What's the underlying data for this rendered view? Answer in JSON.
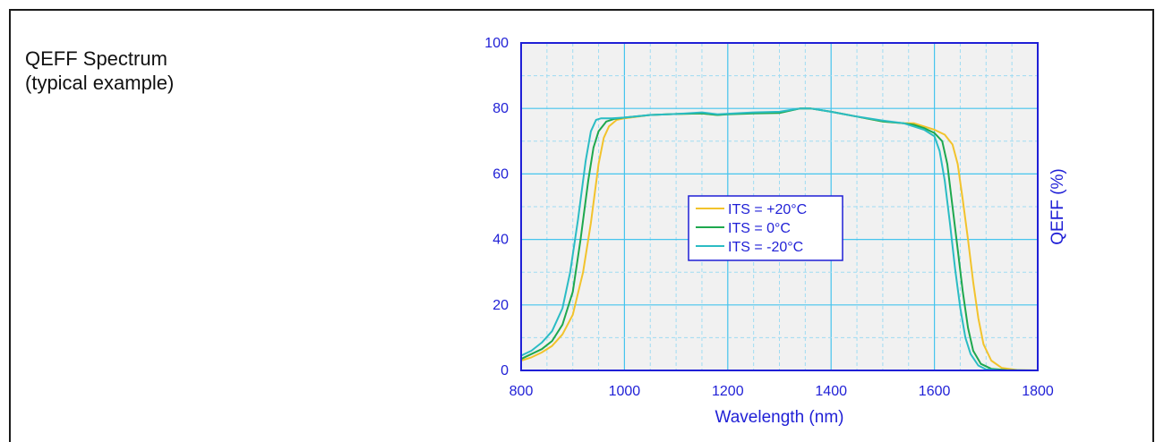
{
  "caption": {
    "line1": "QEFF Spectrum",
    "line2": "(typical example)"
  },
  "colors": {
    "axis": "#1f1fd6",
    "grid_major": "#45c4ee",
    "grid_minor": "#9fdcf2",
    "plot_bg": "#f1f1f1",
    "frame": "#1a1a1a"
  },
  "chart_data": {
    "type": "line",
    "xlabel": "Wavelength (nm)",
    "ylabel": "QEFF (%)",
    "xlim": [
      800,
      1800
    ],
    "ylim": [
      0,
      100
    ],
    "xticks": [
      800,
      1000,
      1200,
      1400,
      1600,
      1800
    ],
    "yticks": [
      0,
      20,
      40,
      60,
      80,
      100
    ],
    "grid": true,
    "legend_position": "center",
    "series": [
      {
        "name": "ITS = +20°C",
        "color": "#f2c32c",
        "points": [
          [
            800,
            3
          ],
          [
            820,
            4
          ],
          [
            840,
            5.5
          ],
          [
            860,
            7.5
          ],
          [
            880,
            11
          ],
          [
            900,
            17
          ],
          [
            920,
            30
          ],
          [
            935,
            45
          ],
          [
            950,
            63
          ],
          [
            960,
            71
          ],
          [
            970,
            74.5
          ],
          [
            985,
            76.5
          ],
          [
            1000,
            77
          ],
          [
            1050,
            78
          ],
          [
            1100,
            78.3
          ],
          [
            1150,
            78.5
          ],
          [
            1180,
            78
          ],
          [
            1200,
            78.3
          ],
          [
            1250,
            78.6
          ],
          [
            1300,
            78.8
          ],
          [
            1340,
            80
          ],
          [
            1360,
            80
          ],
          [
            1400,
            79
          ],
          [
            1450,
            77.5
          ],
          [
            1500,
            76
          ],
          [
            1540,
            75.5
          ],
          [
            1560,
            75.5
          ],
          [
            1580,
            74.5
          ],
          [
            1600,
            73.5
          ],
          [
            1620,
            72
          ],
          [
            1635,
            69
          ],
          [
            1645,
            63
          ],
          [
            1655,
            52
          ],
          [
            1665,
            40
          ],
          [
            1675,
            27
          ],
          [
            1685,
            16
          ],
          [
            1695,
            8
          ],
          [
            1710,
            3
          ],
          [
            1730,
            0.8
          ],
          [
            1760,
            0.1
          ],
          [
            1800,
            0
          ]
        ]
      },
      {
        "name": "ITS = 0°C",
        "color": "#1ea84e",
        "points": [
          [
            800,
            3.5
          ],
          [
            820,
            5
          ],
          [
            840,
            6.5
          ],
          [
            860,
            9
          ],
          [
            880,
            14
          ],
          [
            900,
            24
          ],
          [
            915,
            40
          ],
          [
            930,
            58
          ],
          [
            940,
            68
          ],
          [
            950,
            73
          ],
          [
            965,
            76
          ],
          [
            980,
            76.8
          ],
          [
            1000,
            77.2
          ],
          [
            1050,
            78
          ],
          [
            1100,
            78.3
          ],
          [
            1150,
            78.5
          ],
          [
            1180,
            78
          ],
          [
            1200,
            78.2
          ],
          [
            1250,
            78.5
          ],
          [
            1300,
            78.6
          ],
          [
            1340,
            80
          ],
          [
            1360,
            80
          ],
          [
            1400,
            79
          ],
          [
            1450,
            77.5
          ],
          [
            1500,
            76
          ],
          [
            1540,
            75.5
          ],
          [
            1560,
            75
          ],
          [
            1580,
            74
          ],
          [
            1600,
            72.5
          ],
          [
            1615,
            70
          ],
          [
            1625,
            63
          ],
          [
            1635,
            50
          ],
          [
            1645,
            37
          ],
          [
            1655,
            24
          ],
          [
            1665,
            13
          ],
          [
            1675,
            6
          ],
          [
            1690,
            2
          ],
          [
            1710,
            0.5
          ],
          [
            1740,
            0.1
          ],
          [
            1800,
            0
          ]
        ]
      },
      {
        "name": "ITS = -20°C",
        "color": "#2bbcc4",
        "points": [
          [
            800,
            4.5
          ],
          [
            820,
            6
          ],
          [
            840,
            8.5
          ],
          [
            860,
            12
          ],
          [
            880,
            19
          ],
          [
            895,
            30
          ],
          [
            910,
            46
          ],
          [
            925,
            64
          ],
          [
            935,
            73
          ],
          [
            945,
            76.5
          ],
          [
            955,
            77
          ],
          [
            975,
            77
          ],
          [
            1000,
            77.2
          ],
          [
            1050,
            78
          ],
          [
            1100,
            78.3
          ],
          [
            1150,
            78.8
          ],
          [
            1180,
            78.2
          ],
          [
            1200,
            78.4
          ],
          [
            1250,
            78.8
          ],
          [
            1300,
            79
          ],
          [
            1340,
            80
          ],
          [
            1360,
            80
          ],
          [
            1400,
            79
          ],
          [
            1450,
            77.5
          ],
          [
            1500,
            76.3
          ],
          [
            1540,
            75.5
          ],
          [
            1560,
            74.5
          ],
          [
            1580,
            73.5
          ],
          [
            1600,
            71.5
          ],
          [
            1610,
            67
          ],
          [
            1620,
            58
          ],
          [
            1630,
            45
          ],
          [
            1640,
            31
          ],
          [
            1650,
            19
          ],
          [
            1660,
            10
          ],
          [
            1670,
            5
          ],
          [
            1685,
            1.5
          ],
          [
            1700,
            0.3
          ],
          [
            1730,
            0
          ],
          [
            1800,
            0
          ]
        ]
      }
    ]
  }
}
